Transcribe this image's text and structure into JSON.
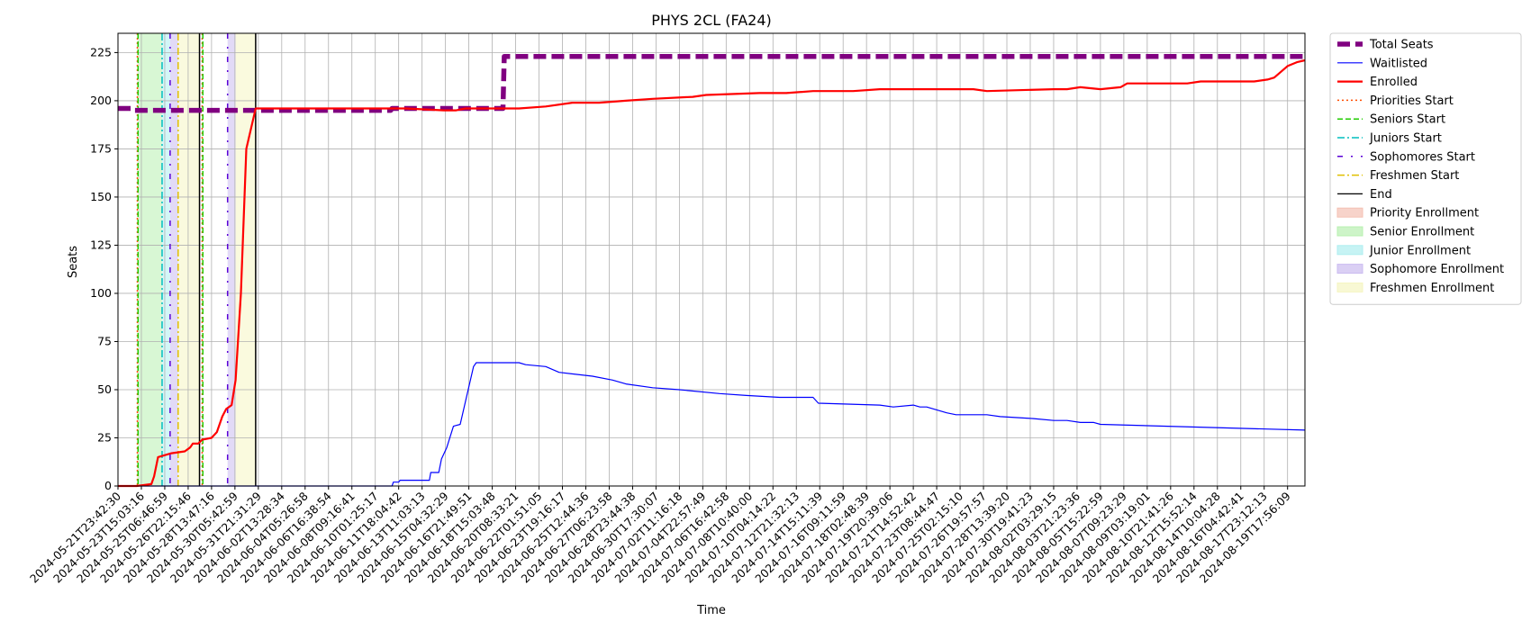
{
  "chart_data": {
    "type": "line",
    "title": "PHYS 2CL (FA24)",
    "xlabel": "Time",
    "ylabel": "Seats",
    "ylim": [
      0,
      235
    ],
    "xlim": [
      0,
      88.8
    ],
    "yticks": [
      0,
      25,
      50,
      75,
      100,
      125,
      150,
      175,
      200,
      225
    ],
    "xtick_labels": [
      "2024-05-21T23:42:30",
      "2024-05-23T15:03:16",
      "2024-05-25T06:46:59",
      "2024-05-26T22:15:46",
      "2024-05-28T13:47:16",
      "2024-05-30T05:42:59",
      "2024-05-31T21:31:29",
      "2024-06-02T13:28:34",
      "2024-06-04T05:26:58",
      "2024-06-06T16:38:54",
      "2024-06-08T09:16:41",
      "2024-06-10T01:25:17",
      "2024-06-11T18:04:42",
      "2024-06-13T11:03:13",
      "2024-06-15T04:32:29",
      "2024-06-16T21:49:51",
      "2024-06-18T15:03:48",
      "2024-06-20T08:33:21",
      "2024-06-22T01:51:05",
      "2024-06-23T19:16:17",
      "2024-06-25T12:44:36",
      "2024-06-27T06:23:58",
      "2024-06-28T23:44:38",
      "2024-06-30T17:30:07",
      "2024-07-02T11:16:18",
      "2024-07-04T22:57:49",
      "2024-07-06T16:42:58",
      "2024-07-08T10:40:00",
      "2024-07-10T04:14:22",
      "2024-07-12T21:32:13",
      "2024-07-14T15:11:39",
      "2024-07-16T09:11:59",
      "2024-07-18T02:48:39",
      "2024-07-19T20:39:06",
      "2024-07-21T14:52:42",
      "2024-07-23T08:44:47",
      "2024-07-25T02:15:10",
      "2024-07-26T19:57:57",
      "2024-07-28T13:39:20",
      "2024-07-30T19:41:23",
      "2024-08-02T03:29:15",
      "2024-08-03T21:23:36",
      "2024-08-05T15:22:59",
      "2024-08-07T09:23:29",
      "2024-08-09T03:19:01",
      "2024-08-10T21:41:26",
      "2024-08-12T15:52:14",
      "2024-08-14T10:04:28",
      "2024-08-16T04:42:41",
      "2024-08-17T23:12:13",
      "2024-08-19T17:56:09"
    ],
    "grid": true,
    "legend_position": "outside-right",
    "series": [
      {
        "name": "Total Seats",
        "color": "#800080",
        "style": "dashed-thick",
        "x": [
          0,
          1,
          1.1,
          20.4,
          20.5,
          28.8,
          28.9,
          88.8
        ],
        "y": [
          196,
          196,
          195,
          195,
          196,
          196,
          223,
          223
        ]
      },
      {
        "name": "Waitlisted",
        "color": "#0000ff",
        "style": "solid",
        "x": [
          0,
          20.5,
          20.6,
          21,
          21.1,
          23.3,
          23.4,
          24,
          24.2,
          24.6,
          25.1,
          25.6,
          26.6,
          26.8,
          30,
          30.5,
          32,
          33,
          35.5,
          37,
          38,
          40,
          42,
          45,
          47,
          49.5,
          52,
          52.4,
          57,
          58,
          59.5,
          60,
          60.5,
          62,
          62.7,
          65,
          66,
          68.5,
          70,
          71,
          72,
          73,
          73.5,
          88.8
        ],
        "y": [
          0,
          0,
          2,
          2,
          3,
          3,
          7,
          7,
          14,
          20,
          31,
          32,
          62,
          64,
          64,
          63,
          62,
          59,
          57,
          55,
          53,
          51,
          50,
          48,
          47,
          46,
          46,
          43,
          42,
          41,
          42,
          41,
          41,
          38,
          37,
          37,
          36,
          35,
          34,
          34,
          33,
          33,
          32,
          29
        ]
      },
      {
        "name": "Enrolled",
        "color": "#ff0000",
        "style": "solid-thick",
        "x": [
          0,
          1.4,
          2.5,
          2.7,
          3,
          4,
          5,
          5.4,
          5.6,
          6,
          6.3,
          7,
          7.4,
          7.8,
          8.1,
          8.5,
          8.8,
          9.2,
          9.6,
          10.3,
          20.5,
          21.5,
          24.4,
          25.3,
          26,
          30,
          32,
          34,
          36,
          38,
          40,
          43,
          44,
          48,
          50,
          52,
          55,
          57,
          60,
          64,
          65,
          70,
          71,
          72,
          73.5,
          75,
          75.5,
          80,
          81,
          82,
          83,
          83.5,
          85,
          86,
          86.5,
          87.5,
          88.2,
          88.8
        ],
        "y": [
          0,
          0,
          1,
          5,
          15,
          17,
          18,
          20,
          22,
          22,
          24,
          25,
          28,
          36,
          40,
          42,
          55,
          100,
          175,
          196,
          196,
          196,
          195,
          195,
          196,
          196,
          197,
          199,
          199,
          200,
          201,
          202,
          203,
          204,
          204,
          205,
          205,
          206,
          206,
          206,
          205,
          206,
          206,
          207,
          206,
          207,
          209,
          209,
          210,
          210,
          210,
          210,
          210,
          211,
          212,
          218,
          220,
          221
        ]
      }
    ],
    "markers": [
      {
        "name": "Priorities Start",
        "color": "#ff4d00",
        "style": "dotted",
        "x": [
          1.45,
          6.3
        ]
      },
      {
        "name": "Seniors Start",
        "color": "#22cc00",
        "style": "dashed",
        "x": [
          1.5,
          6.35
        ]
      },
      {
        "name": "Juniors Start",
        "color": "#00bfbf",
        "style": "dashdot",
        "x": [
          3.3
        ]
      },
      {
        "name": "Sophomores Start",
        "color": "#5a00d6",
        "style": "dashdot-sparse",
        "x": [
          3.9,
          8.2
        ]
      },
      {
        "name": "Freshmen Start",
        "color": "#e0c000",
        "style": "dashdot",
        "x": [
          4.5
        ]
      },
      {
        "name": "End",
        "color": "#000000",
        "style": "solid",
        "x": [
          6.1,
          10.3
        ]
      }
    ],
    "spans": [
      {
        "name": "Priority Enrollment",
        "color": "#f4c1b3",
        "from": 1.45,
        "to": 1.5
      },
      {
        "name": "Senior Enrollment",
        "color": "#b8f0b0",
        "from": 1.5,
        "to": 3.3
      },
      {
        "name": "Junior Enrollment",
        "color": "#aeeef0",
        "from": 3.3,
        "to": 3.9
      },
      {
        "name": "Sophomore Enrollment",
        "color": "#cbbbf0",
        "from": 3.9,
        "to": 4.5
      },
      {
        "name": "Freshmen Enrollment",
        "color": "#f5f5c2",
        "from": 4.5,
        "to": 6.1
      },
      {
        "name": "Sophomore Enrollment",
        "color": "#cbbbf0",
        "from": 8.2,
        "to": 8.8
      },
      {
        "name": "Freshmen Enrollment",
        "color": "#f5f5c2",
        "from": 8.8,
        "to": 10.3
      }
    ],
    "legend": [
      {
        "label": "Total Seats",
        "kind": "line",
        "color": "#800080",
        "style": "dashed-thick"
      },
      {
        "label": "Waitlisted",
        "kind": "line",
        "color": "#0000ff",
        "style": "solid"
      },
      {
        "label": "Enrolled",
        "kind": "line",
        "color": "#ff0000",
        "style": "solid-thick"
      },
      {
        "label": "Priorities Start",
        "kind": "line",
        "color": "#ff4d00",
        "style": "dotted"
      },
      {
        "label": "Seniors Start",
        "kind": "line",
        "color": "#22cc00",
        "style": "dashed"
      },
      {
        "label": "Juniors Start",
        "kind": "line",
        "color": "#00bfbf",
        "style": "dashdot"
      },
      {
        "label": "Sophomores Start",
        "kind": "line",
        "color": "#5a00d6",
        "style": "dashdot-sparse"
      },
      {
        "label": "Freshmen Start",
        "kind": "line",
        "color": "#e0c000",
        "style": "dashdot"
      },
      {
        "label": "End",
        "kind": "line",
        "color": "#000000",
        "style": "solid"
      },
      {
        "label": "Priority Enrollment",
        "kind": "patch",
        "color": "#f4c1b3"
      },
      {
        "label": "Senior Enrollment",
        "kind": "patch",
        "color": "#b8f0b0"
      },
      {
        "label": "Junior Enrollment",
        "kind": "patch",
        "color": "#aeeef0"
      },
      {
        "label": "Sophomore Enrollment",
        "kind": "patch",
        "color": "#cbbbf0"
      },
      {
        "label": "Freshmen Enrollment",
        "kind": "patch",
        "color": "#f5f5c2"
      }
    ]
  }
}
